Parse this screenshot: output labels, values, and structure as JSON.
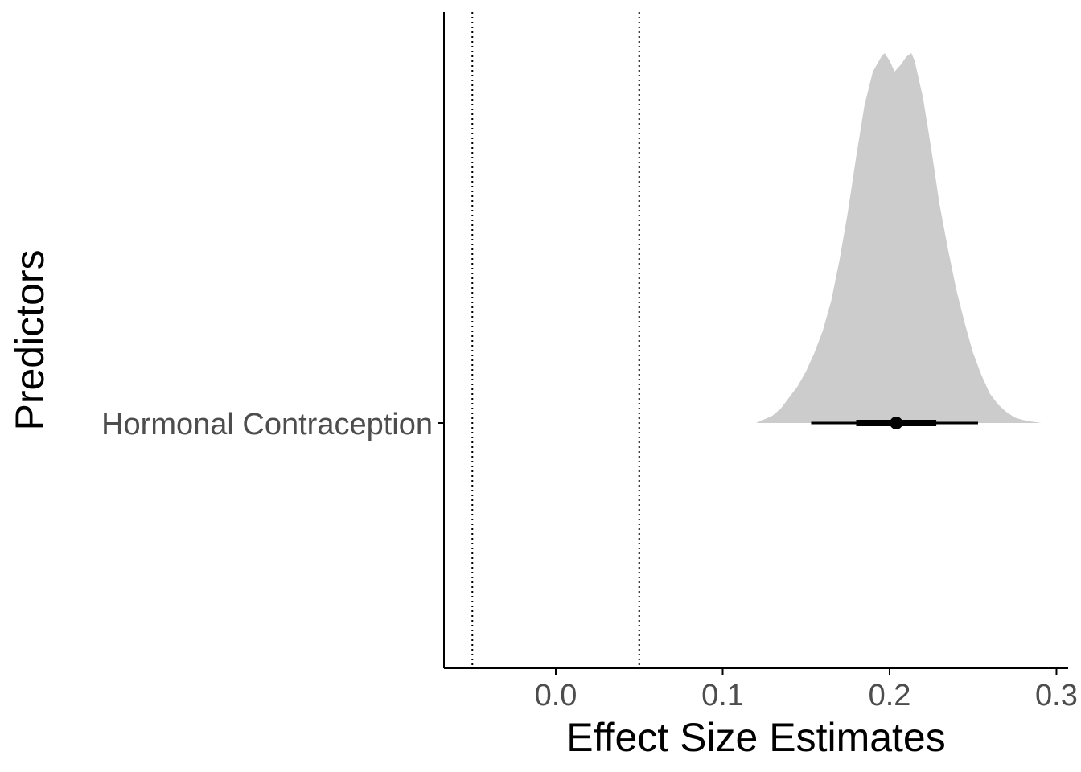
{
  "chart_data": {
    "type": "halfeye",
    "xlabel": "Effect Size Estimates",
    "ylabel": "Predictors",
    "xlim": [
      -0.067,
      0.307
    ],
    "x_ticks": [
      0.0,
      0.1,
      0.2,
      0.3
    ],
    "x_tick_labels": [
      "0.0",
      "0.1",
      "0.2",
      "0.3"
    ],
    "categories": [
      "Hormonal Contraception"
    ],
    "reference_lines": [
      -0.05,
      0.05
    ],
    "reference_line_style": "dotted",
    "grid": false,
    "distribution": {
      "category": "Hormonal Contraception",
      "fill_color": "#cccccc",
      "density": [
        [
          0.12,
          0.0
        ],
        [
          0.125,
          0.01
        ],
        [
          0.13,
          0.02
        ],
        [
          0.135,
          0.04
        ],
        [
          0.14,
          0.07
        ],
        [
          0.145,
          0.1
        ],
        [
          0.15,
          0.14
        ],
        [
          0.155,
          0.19
        ],
        [
          0.16,
          0.25
        ],
        [
          0.165,
          0.33
        ],
        [
          0.17,
          0.44
        ],
        [
          0.175,
          0.57
        ],
        [
          0.18,
          0.72
        ],
        [
          0.185,
          0.86
        ],
        [
          0.19,
          0.95
        ],
        [
          0.195,
          0.99
        ],
        [
          0.197,
          1.0
        ],
        [
          0.2,
          0.98
        ],
        [
          0.203,
          0.95
        ],
        [
          0.207,
          0.97
        ],
        [
          0.21,
          0.99
        ],
        [
          0.213,
          1.0
        ],
        [
          0.215,
          0.98
        ],
        [
          0.22,
          0.88
        ],
        [
          0.225,
          0.74
        ],
        [
          0.23,
          0.59
        ],
        [
          0.235,
          0.47
        ],
        [
          0.24,
          0.36
        ],
        [
          0.245,
          0.27
        ],
        [
          0.25,
          0.19
        ],
        [
          0.255,
          0.13
        ],
        [
          0.26,
          0.08
        ],
        [
          0.265,
          0.05
        ],
        [
          0.27,
          0.03
        ],
        [
          0.275,
          0.015
        ],
        [
          0.28,
          0.008
        ],
        [
          0.285,
          0.004
        ],
        [
          0.291,
          0.0
        ]
      ],
      "median": 0.204,
      "interval_66": [
        0.18,
        0.228
      ],
      "interval_95": [
        0.153,
        0.253
      ],
      "point_color": "#000000"
    }
  }
}
